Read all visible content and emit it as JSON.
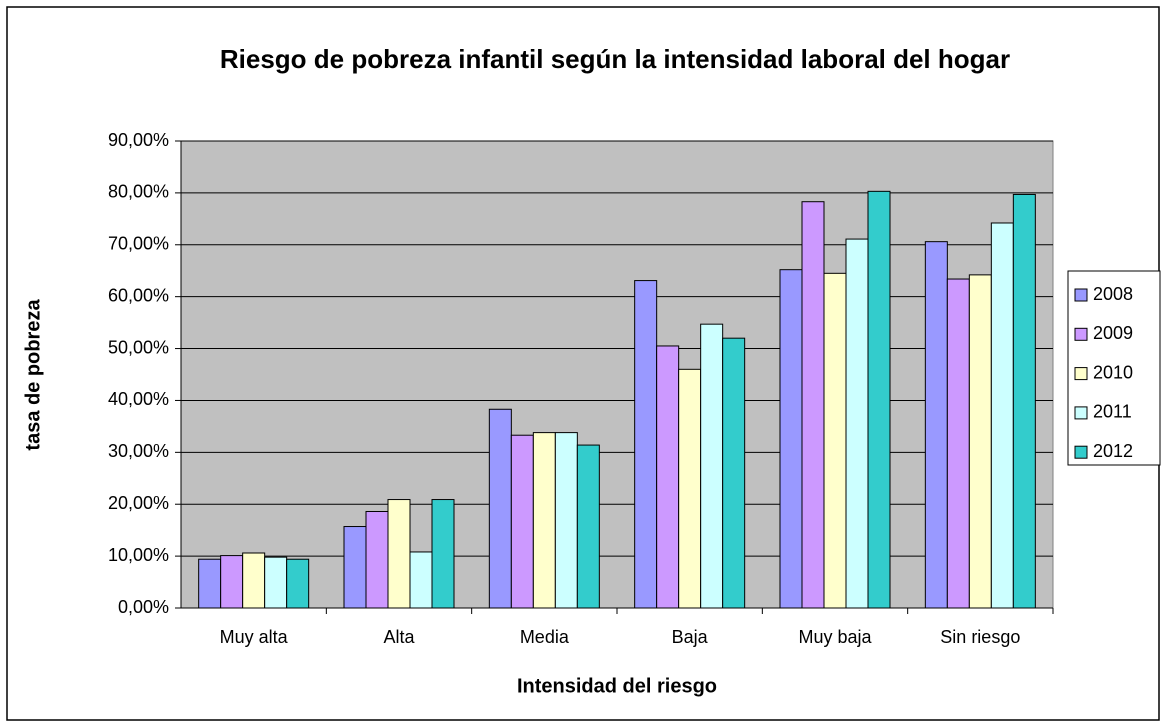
{
  "chart_data": {
    "type": "bar",
    "title": "Riesgo de pobreza infantil según la intensidad laboral del hogar",
    "x_label": "Intensidad del riesgo",
    "y_label": "tasa de pobreza",
    "categories": [
      "Muy alta",
      "Alta",
      "Media",
      "Baja",
      "Muy baja",
      "Sin riesgo"
    ],
    "series": [
      {
        "name": "2008",
        "color": "#9999ff",
        "values": [
          9.4,
          15.7,
          38.3,
          63.1,
          65.2,
          70.6
        ]
      },
      {
        "name": "2009",
        "color": "#cc99ff",
        "values": [
          10.1,
          18.6,
          33.3,
          50.5,
          78.3,
          63.4
        ]
      },
      {
        "name": "2010",
        "color": "#ffffcc",
        "values": [
          10.6,
          20.9,
          33.8,
          46.0,
          64.5,
          64.2
        ]
      },
      {
        "name": "2011",
        "color": "#ccffff",
        "values": [
          9.8,
          10.8,
          33.8,
          54.7,
          71.1,
          74.2
        ]
      },
      {
        "name": "2012",
        "color": "#33cccc",
        "values": [
          9.4,
          20.9,
          31.4,
          52.0,
          80.3,
          79.7
        ]
      }
    ],
    "ylim": [
      0,
      90
    ],
    "yticks": [
      {
        "value": 0,
        "label": "0,00%"
      },
      {
        "value": 10,
        "label": "10,00%"
      },
      {
        "value": 20,
        "label": "20,00%"
      },
      {
        "value": 30,
        "label": "30,00%"
      },
      {
        "value": 40,
        "label": "40,00%"
      },
      {
        "value": 50,
        "label": "50,00%"
      },
      {
        "value": 60,
        "label": "60,00%"
      },
      {
        "value": 70,
        "label": "70,00%"
      },
      {
        "value": 80,
        "label": "80,00%"
      },
      {
        "value": 90,
        "label": "90,00%"
      }
    ],
    "grid": true,
    "legend": "right"
  }
}
